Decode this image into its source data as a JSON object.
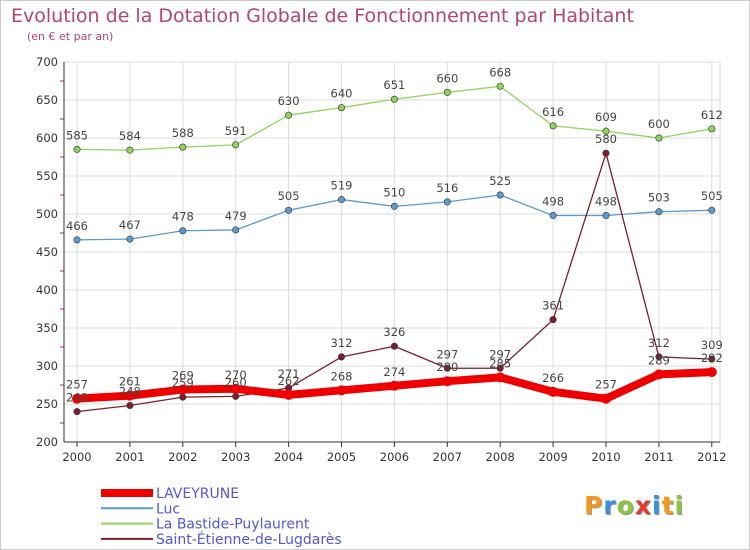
{
  "title": "Evolution de la Dotation Globale de Fonctionnement par Habitant",
  "subtitle": "(en € et par an)",
  "logo": {
    "text": "Proxiti",
    "colors": [
      "#f29a1d",
      "#3b8fd6",
      "#8cc43f",
      "#e23b2d",
      "#3b8fd6",
      "#f29a1d",
      "#8cc43f"
    ]
  },
  "chart_data": {
    "type": "line",
    "title": "Evolution de la Dotation Globale de Fonctionnement par Habitant",
    "subtitle": "(en € et par an)",
    "x": [
      "2000",
      "2001",
      "2002",
      "2003",
      "2004",
      "2005",
      "2006",
      "2007",
      "2008",
      "2009",
      "2010",
      "2011",
      "2012"
    ],
    "ylim": [
      200,
      700
    ],
    "yticks": [
      200,
      250,
      300,
      350,
      400,
      450,
      500,
      550,
      600,
      650,
      700
    ],
    "grid": true,
    "legend_position": "bottom-left",
    "series": [
      {
        "name": "LAVEYRUNE",
        "color": "#ee0000",
        "values": [
          257,
          261,
          269,
          270,
          262,
          268,
          274,
          280,
          285,
          266,
          257,
          289,
          292
        ]
      },
      {
        "name": "Luc",
        "color": "#5b9bd0",
        "values": [
          466,
          467,
          478,
          479,
          505,
          519,
          510,
          516,
          525,
          498,
          498,
          503,
          505
        ]
      },
      {
        "name": "La Bastide-Puylaurent",
        "color": "#8fd45c",
        "values": [
          585,
          584,
          588,
          591,
          630,
          640,
          651,
          660,
          668,
          616,
          609,
          600,
          612
        ]
      },
      {
        "name": "Saint-Étienne-de-Lugdarès",
        "color": "#7a1f2b",
        "values": [
          240,
          248,
          259,
          260,
          271,
          312,
          326,
          297,
          297,
          361,
          580,
          312,
          309
        ]
      }
    ]
  }
}
